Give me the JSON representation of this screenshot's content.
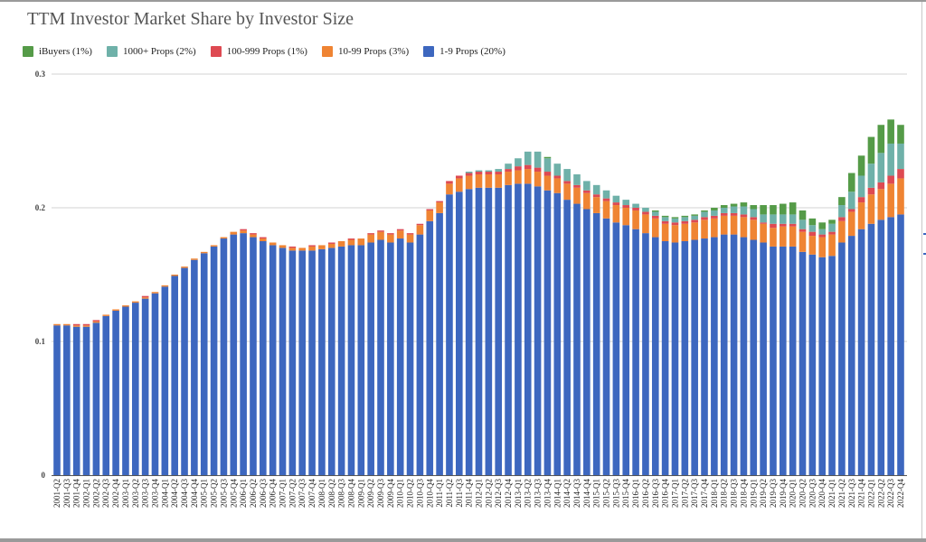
{
  "chart_data": {
    "type": "bar",
    "stacked": true,
    "title": "TTM Investor Market Share by Investor Size",
    "xlabel": "",
    "ylabel": "",
    "ylim": [
      0,
      0.3
    ],
    "yticks": [
      "0",
      "0.1",
      "0.2",
      "0.3"
    ],
    "ytick_values": [
      0,
      0.1,
      0.2,
      0.3
    ],
    "grid": true,
    "legend_position": "top-left",
    "categories": [
      "2001-Q2",
      "2001-Q3",
      "2001-Q4",
      "2002-Q1",
      "2002-Q2",
      "2002-Q3",
      "2002-Q4",
      "2003-Q1",
      "2003-Q2",
      "2003-Q3",
      "2003-Q4",
      "2004-Q1",
      "2004-Q2",
      "2004-Q3",
      "2004-Q4",
      "2005-Q1",
      "2005-Q2",
      "2005-Q3",
      "2005-Q4",
      "2006-Q1",
      "2006-Q2",
      "2006-Q3",
      "2006-Q4",
      "2007-Q1",
      "2007-Q2",
      "2007-Q3",
      "2007-Q4",
      "2008-Q1",
      "2008-Q2",
      "2008-Q3",
      "2008-Q4",
      "2009-Q1",
      "2009-Q2",
      "2009-Q3",
      "2009-Q4",
      "2010-Q1",
      "2010-Q2",
      "2010-Q3",
      "2010-Q4",
      "2011-Q1",
      "2011-Q2",
      "2011-Q3",
      "2011-Q4",
      "2012-Q1",
      "2012-Q2",
      "2012-Q3",
      "2012-Q4",
      "2013-Q1",
      "2013-Q2",
      "2013-Q3",
      "2013-Q4",
      "2014-Q1",
      "2014-Q2",
      "2014-Q3",
      "2014-Q4",
      "2015-Q1",
      "2015-Q2",
      "2015-Q3",
      "2015-Q4",
      "2016-Q1",
      "2016-Q2",
      "2016-Q3",
      "2016-Q4",
      "2017-Q1",
      "2017-Q2",
      "2017-Q3",
      "2017-Q4",
      "2018-Q1",
      "2018-Q2",
      "2018-Q3",
      "2018-Q4",
      "2019-Q1",
      "2019-Q2",
      "2019-Q3",
      "2019-Q4",
      "2020-Q1",
      "2020-Q2",
      "2020-Q3",
      "2020-Q4",
      "2021-Q1",
      "2021-Q2",
      "2021-Q3",
      "2021-Q4",
      "2022-Q1",
      "2022-Q2",
      "2022-Q3",
      "2022-Q4"
    ],
    "series": [
      {
        "name": "1-9 Props (20%)",
        "color": "#3d67bf",
        "values": [
          0.112,
          0.112,
          0.111,
          0.111,
          0.114,
          0.119,
          0.123,
          0.126,
          0.129,
          0.132,
          0.136,
          0.141,
          0.149,
          0.155,
          0.161,
          0.166,
          0.171,
          0.177,
          0.18,
          0.181,
          0.178,
          0.175,
          0.172,
          0.17,
          0.168,
          0.168,
          0.168,
          0.169,
          0.17,
          0.171,
          0.172,
          0.172,
          0.174,
          0.176,
          0.174,
          0.177,
          0.174,
          0.18,
          0.19,
          0.196,
          0.21,
          0.212,
          0.214,
          0.215,
          0.215,
          0.215,
          0.217,
          0.218,
          0.218,
          0.216,
          0.213,
          0.211,
          0.206,
          0.203,
          0.199,
          0.196,
          0.192,
          0.189,
          0.187,
          0.184,
          0.181,
          0.178,
          0.175,
          0.174,
          0.175,
          0.176,
          0.177,
          0.178,
          0.18,
          0.18,
          0.178,
          0.176,
          0.174,
          0.171,
          0.171,
          0.171,
          0.167,
          0.165,
          0.163,
          0.164,
          0.174,
          0.179,
          0.184,
          0.188,
          0.191,
          0.193,
          0.195
        ]
      },
      {
        "name": "10-99 Props (3%)",
        "color": "#ef8433",
        "values": [
          0.001,
          0.001,
          0.001,
          0.001,
          0.001,
          0.001,
          0.001,
          0.001,
          0.001,
          0.001,
          0.001,
          0.001,
          0.001,
          0.001,
          0.001,
          0.001,
          0.001,
          0.001,
          0.002,
          0.002,
          0.002,
          0.002,
          0.002,
          0.002,
          0.002,
          0.002,
          0.003,
          0.003,
          0.003,
          0.004,
          0.004,
          0.005,
          0.006,
          0.006,
          0.006,
          0.006,
          0.006,
          0.007,
          0.008,
          0.008,
          0.008,
          0.01,
          0.01,
          0.01,
          0.01,
          0.01,
          0.01,
          0.01,
          0.011,
          0.011,
          0.011,
          0.011,
          0.012,
          0.012,
          0.012,
          0.012,
          0.013,
          0.013,
          0.013,
          0.014,
          0.014,
          0.014,
          0.013,
          0.013,
          0.013,
          0.013,
          0.014,
          0.014,
          0.014,
          0.014,
          0.015,
          0.015,
          0.014,
          0.014,
          0.015,
          0.015,
          0.015,
          0.014,
          0.015,
          0.016,
          0.016,
          0.018,
          0.02,
          0.022,
          0.023,
          0.025,
          0.027
        ]
      },
      {
        "name": "100-999 Props (1%)",
        "color": "#de4a52",
        "values": [
          0.0,
          0.0,
          0.001,
          0.001,
          0.001,
          0.0,
          0.0,
          0.0,
          0.0,
          0.001,
          0.0,
          0.0,
          0.0,
          0.0,
          0.0,
          0.0,
          0.0,
          0.0,
          0.0,
          0.001,
          0.001,
          0.001,
          0.0,
          0.0,
          0.001,
          0.0,
          0.001,
          0.0,
          0.001,
          0.0,
          0.001,
          0.0,
          0.001,
          0.001,
          0.001,
          0.001,
          0.001,
          0.001,
          0.001,
          0.001,
          0.002,
          0.002,
          0.002,
          0.002,
          0.002,
          0.002,
          0.002,
          0.003,
          0.003,
          0.003,
          0.003,
          0.002,
          0.002,
          0.002,
          0.002,
          0.002,
          0.002,
          0.002,
          0.002,
          0.002,
          0.002,
          0.002,
          0.002,
          0.002,
          0.002,
          0.002,
          0.002,
          0.002,
          0.002,
          0.002,
          0.002,
          0.002,
          0.001,
          0.003,
          0.002,
          0.002,
          0.002,
          0.003,
          0.002,
          0.002,
          0.003,
          0.002,
          0.004,
          0.005,
          0.005,
          0.006,
          0.007
        ]
      },
      {
        "name": "1000+ Props (2%)",
        "color": "#6fb1a9",
        "values": [
          0,
          0,
          0,
          0,
          0,
          0,
          0,
          0,
          0,
          0,
          0,
          0,
          0,
          0,
          0,
          0,
          0,
          0,
          0,
          0,
          0,
          0,
          0,
          0,
          0,
          0,
          0,
          0,
          0,
          0,
          0,
          0,
          0,
          0,
          0,
          0,
          0,
          0,
          0,
          0,
          0,
          0,
          0.001,
          0.001,
          0.001,
          0.002,
          0.004,
          0.006,
          0.01,
          0.012,
          0.01,
          0.009,
          0.009,
          0.008,
          0.007,
          0.007,
          0.006,
          0.005,
          0.004,
          0.003,
          0.003,
          0.003,
          0.003,
          0.003,
          0.003,
          0.003,
          0.004,
          0.004,
          0.004,
          0.005,
          0.006,
          0.006,
          0.006,
          0.007,
          0.007,
          0.007,
          0.007,
          0.005,
          0.004,
          0.006,
          0.009,
          0.013,
          0.016,
          0.018,
          0.022,
          0.024,
          0.019
        ]
      },
      {
        "name": "iBuyers (1%)",
        "color": "#559b48",
        "values": [
          0,
          0,
          0,
          0,
          0,
          0,
          0,
          0,
          0,
          0,
          0,
          0,
          0,
          0,
          0,
          0,
          0,
          0,
          0,
          0,
          0,
          0,
          0,
          0,
          0,
          0,
          0,
          0,
          0,
          0,
          0,
          0,
          0,
          0,
          0,
          0,
          0,
          0,
          0,
          0,
          0,
          0,
          0,
          0,
          0,
          0,
          0,
          0,
          0,
          0,
          0.001,
          0,
          0,
          0,
          0,
          0,
          0,
          0,
          0,
          0,
          0,
          0.001,
          0.001,
          0.001,
          0.001,
          0.001,
          0.001,
          0.002,
          0.002,
          0.002,
          0.003,
          0.003,
          0.007,
          0.007,
          0.008,
          0.009,
          0.007,
          0.005,
          0.005,
          0.003,
          0.006,
          0.014,
          0.015,
          0.02,
          0.021,
          0.018,
          0.014
        ]
      }
    ],
    "legend_order": [
      4,
      3,
      2,
      1,
      0
    ]
  },
  "legend": [
    {
      "label": "iBuyers (1%)",
      "color": "#559b48"
    },
    {
      "label": "1000+ Props (2%)",
      "color": "#6fb1a9"
    },
    {
      "label": "100-999 Props (1%)",
      "color": "#de4a52"
    },
    {
      "label": "10-99 Props (3%)",
      "color": "#ef8433"
    },
    {
      "label": "1-9 Props (20%)",
      "color": "#3d67bf"
    }
  ]
}
